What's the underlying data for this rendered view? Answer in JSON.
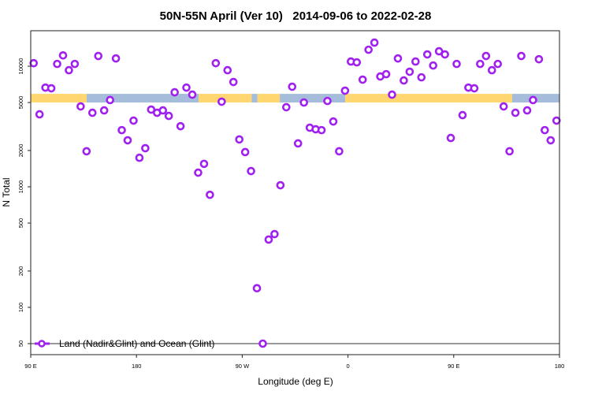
{
  "chart_data": {
    "type": "scatter",
    "title": "50N-55N April (Ver 10)   2014-09-06 to 2022-02-28",
    "xlabel": "Longitude (deg E)",
    "ylabel": "N Total",
    "xlim": [
      90,
      540
    ],
    "ylim": [
      40.5,
      19700
    ],
    "yscale": "log",
    "x_ticks": [
      {
        "value": 90,
        "label": "90 E"
      },
      {
        "value": 180,
        "label": "180"
      },
      {
        "value": 270,
        "label": "90 W"
      },
      {
        "value": 360,
        "label": "0"
      },
      {
        "value": 450,
        "label": "90 E"
      },
      {
        "value": 540,
        "label": "180"
      }
    ],
    "y_ticks": [
      {
        "value": 50,
        "label": "50"
      },
      {
        "value": 100,
        "label": "100"
      },
      {
        "value": 200,
        "label": "200"
      },
      {
        "value": 500,
        "label": "500"
      },
      {
        "value": 1000,
        "label": "1000"
      },
      {
        "value": 2000,
        "label": "2000"
      },
      {
        "value": 5000,
        "label": "5000"
      },
      {
        "value": 10000,
        "label": "10000"
      }
    ],
    "reference_line": 50,
    "grid": false,
    "legend": {
      "placement": "bottom-left",
      "entries": [
        {
          "label": "Land (Nadir&Glint) and Ocean (Glint)",
          "color": "#A020F0"
        }
      ]
    },
    "series": [
      {
        "name": "Land (Nadir&Glint) and Ocean (Glint)",
        "color": "#A020F0",
        "x_start": 92.5,
        "x_step": 5,
        "values": [
          10600,
          3990,
          6650,
          6560,
          10450,
          12300,
          9270,
          10450,
          4640,
          1970,
          4110,
          12160,
          4300,
          5240,
          11600,
          2950,
          2430,
          3540,
          1740,
          2090,
          4370,
          4110,
          4300,
          3870,
          6080,
          3180,
          6650,
          5810,
          1310,
          1550,
          858,
          10600,
          5080,
          9270,
          7400,
          2470,
          1940,
          1350,
          144,
          50,
          365,
          405,
          1030,
          4570,
          6760,
          2290,
          5000,
          3090,
          3000,
          2950,
          5150,
          3480,
          1970,
          6270,
          10940,
          10770,
          7740,
          13700,
          15700,
          8220,
          8590,
          5810,
          11600,
          7620,
          9000,
          10940,
          8090,
          12530,
          10140,
          13300,
          12530,
          2540,
          10450,
          3930,
          6650,
          6560,
          10450,
          12160,
          9270,
          10450,
          4640,
          1970,
          4110,
          12160,
          4300,
          5240,
          11430,
          2950,
          2430,
          3540
        ]
      }
    ],
    "surface_band": {
      "range": [
        5000,
        5900
      ],
      "land_color": "#FFD670",
      "ocean_color": "#A5BCDA",
      "segments": [
        {
          "from": 90,
          "to": 137.6,
          "type": "land"
        },
        {
          "from": 137.6,
          "to": 232.9,
          "type": "ocean"
        },
        {
          "from": 232.9,
          "to": 278,
          "type": "land"
        },
        {
          "from": 278,
          "to": 283,
          "type": "ocean"
        },
        {
          "from": 283,
          "to": 302,
          "type": "land"
        },
        {
          "from": 302,
          "to": 357.6,
          "type": "ocean"
        },
        {
          "from": 357.6,
          "to": 499.7,
          "type": "land"
        },
        {
          "from": 499.7,
          "to": 540,
          "type": "ocean"
        }
      ]
    }
  }
}
